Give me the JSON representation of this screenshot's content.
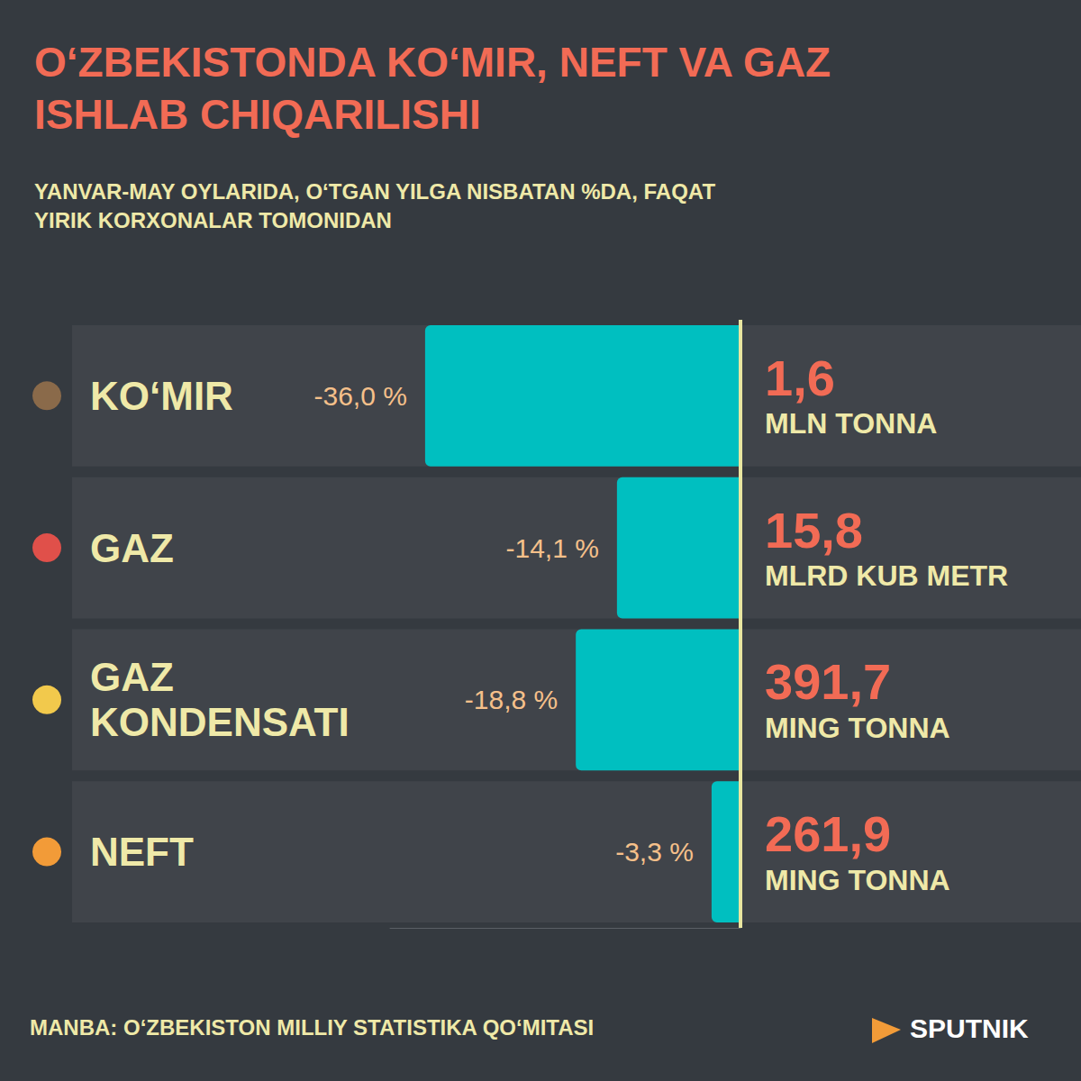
{
  "chart_data": {
    "type": "bar",
    "orientation": "horizontal",
    "title": "O‘ZBEKISTONDA KO‘MIR, NEFT VA GAZ ISHLAB CHIQARILISHI",
    "subtitle": "YANVAR-MAY OYLARIDA, O‘TGAN YILGA NISBATAN %DA, FAQAT YIRIK KORXONALAR TOMONIDAN",
    "categories": [
      "KO‘MIR",
      "GAZ",
      "GAZ KONDENSATI",
      "NEFT"
    ],
    "values": [
      -36.0,
      -14.1,
      -18.8,
      -3.3
    ],
    "value_labels": [
      "-36,0 %",
      "-14,1 %",
      "-18,8 %",
      "-3,3 %"
    ],
    "color": "#00bfc0",
    "data_labels": true,
    "xlim": [
      -40,
      0
    ],
    "grid": false,
    "tick_labels": "y",
    "annotations": [
      {
        "category": "KO‘MIR",
        "value": "1,6",
        "unit": "MLN TONNA"
      },
      {
        "category": "GAZ",
        "value": "15,8",
        "unit": "MLRD KUB METR"
      },
      {
        "category": "GAZ KONDENSATI",
        "value": "391,7",
        "unit": "MING TONNA"
      },
      {
        "category": "NEFT",
        "value": "261,9",
        "unit": "MING TONNA"
      }
    ],
    "source": "MANBA: O‘ZBEKISTON MILLIY STATISTIKA QO‘MITASI",
    "brand": "SPUTNIK"
  }
}
